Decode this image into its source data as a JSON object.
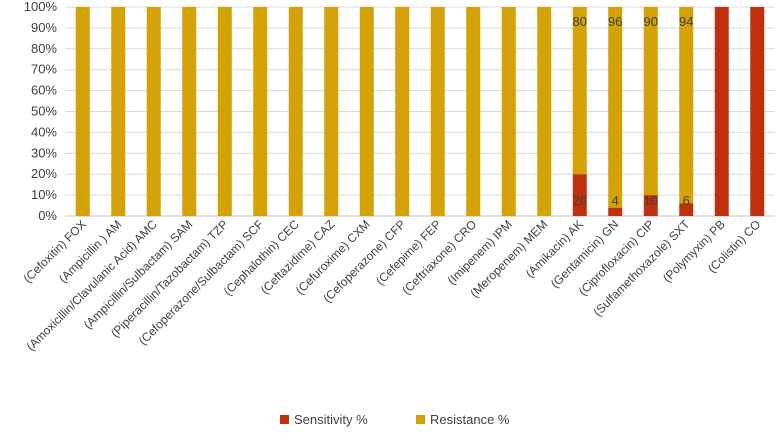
{
  "chart_data": {
    "type": "bar",
    "stacked": true,
    "title": "",
    "xlabel": "",
    "ylabel": "",
    "ylim": [
      0,
      100
    ],
    "yticks": [
      "0%",
      "10%",
      "20%",
      "30%",
      "40%",
      "50%",
      "60%",
      "70%",
      "80%",
      "90%",
      "100%"
    ],
    "grid": true,
    "legend_position": "bottom",
    "categories": [
      "(Cefoxitin) FOX",
      "(Ampicillin ) AM",
      "(Amoxicillin/Clavulanic Acid) AMC",
      "(Ampicillin/Sulbactam) SAM",
      "(Piperacillin/Tazobactam) TZP",
      "(Cefoperazone/Sulbactam) SCF",
      "(Cephalothin) CEC",
      "(Ceftazidime) CAZ",
      "(Cefuroxime) CXM",
      "(Cefoperazone) CFP",
      "(Cefepime) FEP",
      "(Ceftriaxone) CRO",
      "(Imipenem) IPM",
      "(Meropenem) MEM",
      "(Amikacin) AK",
      "(Gentamicin) GN",
      "(Ciprofloxacin) CIP",
      "(Sulfamethoxazole) SXT",
      "(Polymyxin) PB",
      "(Colistin) CO"
    ],
    "series": [
      {
        "name": "Sensitivity %",
        "color": "#c0300f",
        "values": [
          0,
          0,
          0,
          0,
          0,
          0,
          0,
          0,
          0,
          0,
          0,
          0,
          0,
          0,
          20,
          4,
          10,
          6,
          100,
          100
        ],
        "labels": [
          "",
          "",
          "",
          "",
          "",
          "",
          "",
          "",
          "",
          "",
          "",
          "",
          "",
          "",
          "20",
          "4",
          "10",
          "6",
          "",
          ""
        ]
      },
      {
        "name": "Resistance %",
        "color": "#d4a106",
        "values": [
          100,
          100,
          100,
          100,
          100,
          100,
          100,
          100,
          100,
          100,
          100,
          100,
          100,
          100,
          80,
          96,
          90,
          94,
          0,
          0
        ],
        "labels": [
          "",
          "",
          "",
          "",
          "",
          "",
          "",
          "",
          "",
          "",
          "",
          "",
          "",
          "",
          "80",
          "96",
          "90",
          "94",
          "",
          ""
        ]
      }
    ]
  }
}
